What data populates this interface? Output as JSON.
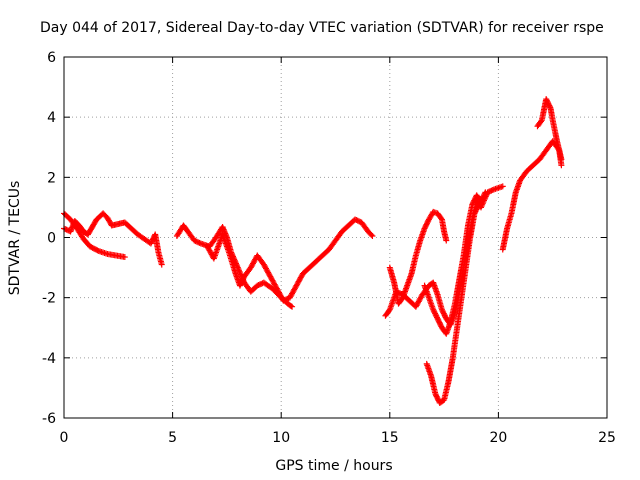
{
  "chart_data": {
    "type": "scatter",
    "title": "Day 044 of 2017, Sidereal Day-to-day VTEC variation (SDTVAR) for receiver rspe",
    "xlabel": "GPS time / hours",
    "ylabel": "SDTVAR / TECUs",
    "xlim": [
      0,
      25
    ],
    "ylim": [
      -6,
      6
    ],
    "xticks": [
      0,
      5,
      10,
      15,
      20,
      25
    ],
    "yticks": [
      -6,
      -4,
      -2,
      0,
      2,
      4,
      6
    ],
    "xtick_labels": [
      "0",
      "5",
      "10",
      "15",
      "20",
      "25"
    ],
    "ytick_labels": [
      "-6",
      "-4",
      "-2",
      "0",
      "2",
      "4",
      "6"
    ],
    "grid": true,
    "marker": "+",
    "series": [
      {
        "name": "SDTVAR",
        "color": "#ff0000",
        "tracks": [
          [
            [
              0,
              0.8
            ],
            [
              0.3,
              0.6
            ],
            [
              0.6,
              0.3
            ],
            [
              0.9,
              -0.05
            ],
            [
              1.2,
              -0.3
            ],
            [
              1.6,
              -0.45
            ],
            [
              2.0,
              -0.55
            ],
            [
              2.4,
              -0.6
            ],
            [
              2.8,
              -0.65
            ]
          ],
          [
            [
              0,
              0.3
            ],
            [
              0.3,
              0.2
            ],
            [
              0.5,
              0.55
            ],
            [
              0.7,
              0.4
            ],
            [
              0.9,
              0.2
            ],
            [
              1.1,
              0.1
            ],
            [
              1.3,
              0.35
            ],
            [
              1.5,
              0.6
            ],
            [
              1.8,
              0.8
            ],
            [
              2.0,
              0.65
            ],
            [
              2.2,
              0.4
            ],
            [
              2.5,
              0.45
            ],
            [
              2.8,
              0.5
            ],
            [
              3.1,
              0.3
            ],
            [
              3.4,
              0.1
            ],
            [
              3.7,
              -0.05
            ],
            [
              4.0,
              -0.2
            ],
            [
              4.2,
              0.1
            ],
            [
              4.35,
              -0.5
            ],
            [
              4.5,
              -0.9
            ]
          ],
          [
            [
              5.2,
              0.05
            ],
            [
              5.5,
              0.4
            ],
            [
              5.7,
              0.2
            ],
            [
              6.0,
              -0.1
            ],
            [
              6.3,
              -0.2
            ],
            [
              6.7,
              -0.3
            ],
            [
              7.0,
              0.0
            ],
            [
              7.3,
              0.35
            ],
            [
              7.5,
              0.0
            ],
            [
              7.7,
              -0.5
            ],
            [
              8.0,
              -1.0
            ],
            [
              8.3,
              -1.5
            ],
            [
              8.6,
              -1.8
            ],
            [
              8.9,
              -1.6
            ],
            [
              9.2,
              -1.5
            ],
            [
              9.6,
              -1.7
            ],
            [
              10.0,
              -2.0
            ],
            [
              10.3,
              -2.2
            ],
            [
              10.5,
              -2.3
            ]
          ],
          [
            [
              6.6,
              -0.3
            ],
            [
              6.9,
              -0.7
            ],
            [
              7.1,
              -0.3
            ],
            [
              7.3,
              0.1
            ],
            [
              7.6,
              -0.5
            ],
            [
              7.9,
              -1.2
            ],
            [
              8.1,
              -1.6
            ],
            [
              8.3,
              -1.3
            ],
            [
              8.6,
              -1.0
            ],
            [
              8.9,
              -0.6
            ],
            [
              9.2,
              -0.9
            ],
            [
              9.5,
              -1.3
            ],
            [
              9.8,
              -1.7
            ],
            [
              10.1,
              -2.1
            ],
            [
              10.4,
              -2.0
            ],
            [
              10.7,
              -1.6
            ],
            [
              11.0,
              -1.2
            ],
            [
              11.3,
              -1.0
            ],
            [
              11.6,
              -0.8
            ],
            [
              11.9,
              -0.6
            ],
            [
              12.2,
              -0.4
            ],
            [
              12.5,
              -0.1
            ],
            [
              12.8,
              0.2
            ],
            [
              13.1,
              0.4
            ],
            [
              13.4,
              0.6
            ],
            [
              13.7,
              0.5
            ],
            [
              14.0,
              0.2
            ],
            [
              14.2,
              0.05
            ]
          ],
          [
            [
              14.8,
              -2.6
            ],
            [
              15.0,
              -2.4
            ],
            [
              15.3,
              -1.8
            ],
            [
              15.6,
              -1.9
            ],
            [
              15.9,
              -2.1
            ],
            [
              16.2,
              -2.3
            ],
            [
              16.5,
              -1.9
            ],
            [
              16.8,
              -1.6
            ],
            [
              17.0,
              -1.5
            ],
            [
              17.2,
              -1.9
            ],
            [
              17.4,
              -2.4
            ],
            [
              17.6,
              -2.7
            ],
            [
              17.8,
              -2.9
            ],
            [
              18.0,
              -2.5
            ],
            [
              18.2,
              -1.8
            ],
            [
              18.4,
              -1.0
            ],
            [
              18.6,
              -0.2
            ],
            [
              18.8,
              0.6
            ],
            [
              19.0,
              1.2
            ],
            [
              19.2,
              1.0
            ],
            [
              19.5,
              1.5
            ],
            [
              19.8,
              1.6
            ],
            [
              20.2,
              1.7
            ]
          ],
          [
            [
              15.0,
              -1.0
            ],
            [
              15.2,
              -1.5
            ],
            [
              15.4,
              -2.2
            ],
            [
              15.6,
              -2.0
            ],
            [
              15.8,
              -1.6
            ],
            [
              16.0,
              -1.2
            ],
            [
              16.2,
              -0.6
            ],
            [
              16.4,
              -0.1
            ],
            [
              16.6,
              0.3
            ],
            [
              16.8,
              0.6
            ],
            [
              17.0,
              0.85
            ],
            [
              17.2,
              0.8
            ],
            [
              17.4,
              0.6
            ],
            [
              17.5,
              0.2
            ],
            [
              17.6,
              -0.1
            ]
          ],
          [
            [
              16.6,
              -1.6
            ],
            [
              16.8,
              -2.0
            ],
            [
              17.0,
              -2.4
            ],
            [
              17.2,
              -2.7
            ],
            [
              17.4,
              -3.0
            ],
            [
              17.6,
              -3.2
            ],
            [
              17.8,
              -2.8
            ],
            [
              18.0,
              -2.2
            ],
            [
              18.2,
              -1.4
            ],
            [
              18.4,
              -0.6
            ],
            [
              18.6,
              0.4
            ],
            [
              18.8,
              1.1
            ],
            [
              19.0,
              1.4
            ],
            [
              19.2,
              1.2
            ],
            [
              19.4,
              1.5
            ]
          ],
          [
            [
              16.7,
              -4.2
            ],
            [
              16.9,
              -4.6
            ],
            [
              17.1,
              -5.2
            ],
            [
              17.3,
              -5.5
            ],
            [
              17.5,
              -5.4
            ],
            [
              17.7,
              -4.8
            ],
            [
              17.9,
              -4.0
            ],
            [
              18.1,
              -3.0
            ],
            [
              18.3,
              -2.0
            ],
            [
              18.5,
              -1.0
            ],
            [
              18.7,
              0.0
            ],
            [
              18.9,
              0.8
            ],
            [
              19.1,
              1.1
            ]
          ],
          [
            [
              20.2,
              -0.4
            ],
            [
              20.4,
              0.3
            ],
            [
              20.6,
              0.8
            ],
            [
              20.8,
              1.5
            ],
            [
              21.0,
              1.9
            ],
            [
              21.3,
              2.2
            ],
            [
              21.6,
              2.4
            ],
            [
              21.9,
              2.6
            ],
            [
              22.2,
              2.9
            ],
            [
              22.5,
              3.2
            ],
            [
              22.8,
              2.9
            ],
            [
              22.9,
              2.4
            ]
          ],
          [
            [
              21.8,
              3.7
            ],
            [
              22.0,
              3.9
            ],
            [
              22.2,
              4.6
            ],
            [
              22.4,
              4.3
            ],
            [
              22.5,
              3.9
            ],
            [
              22.7,
              3.2
            ],
            [
              22.9,
              2.6
            ]
          ]
        ]
      }
    ]
  }
}
